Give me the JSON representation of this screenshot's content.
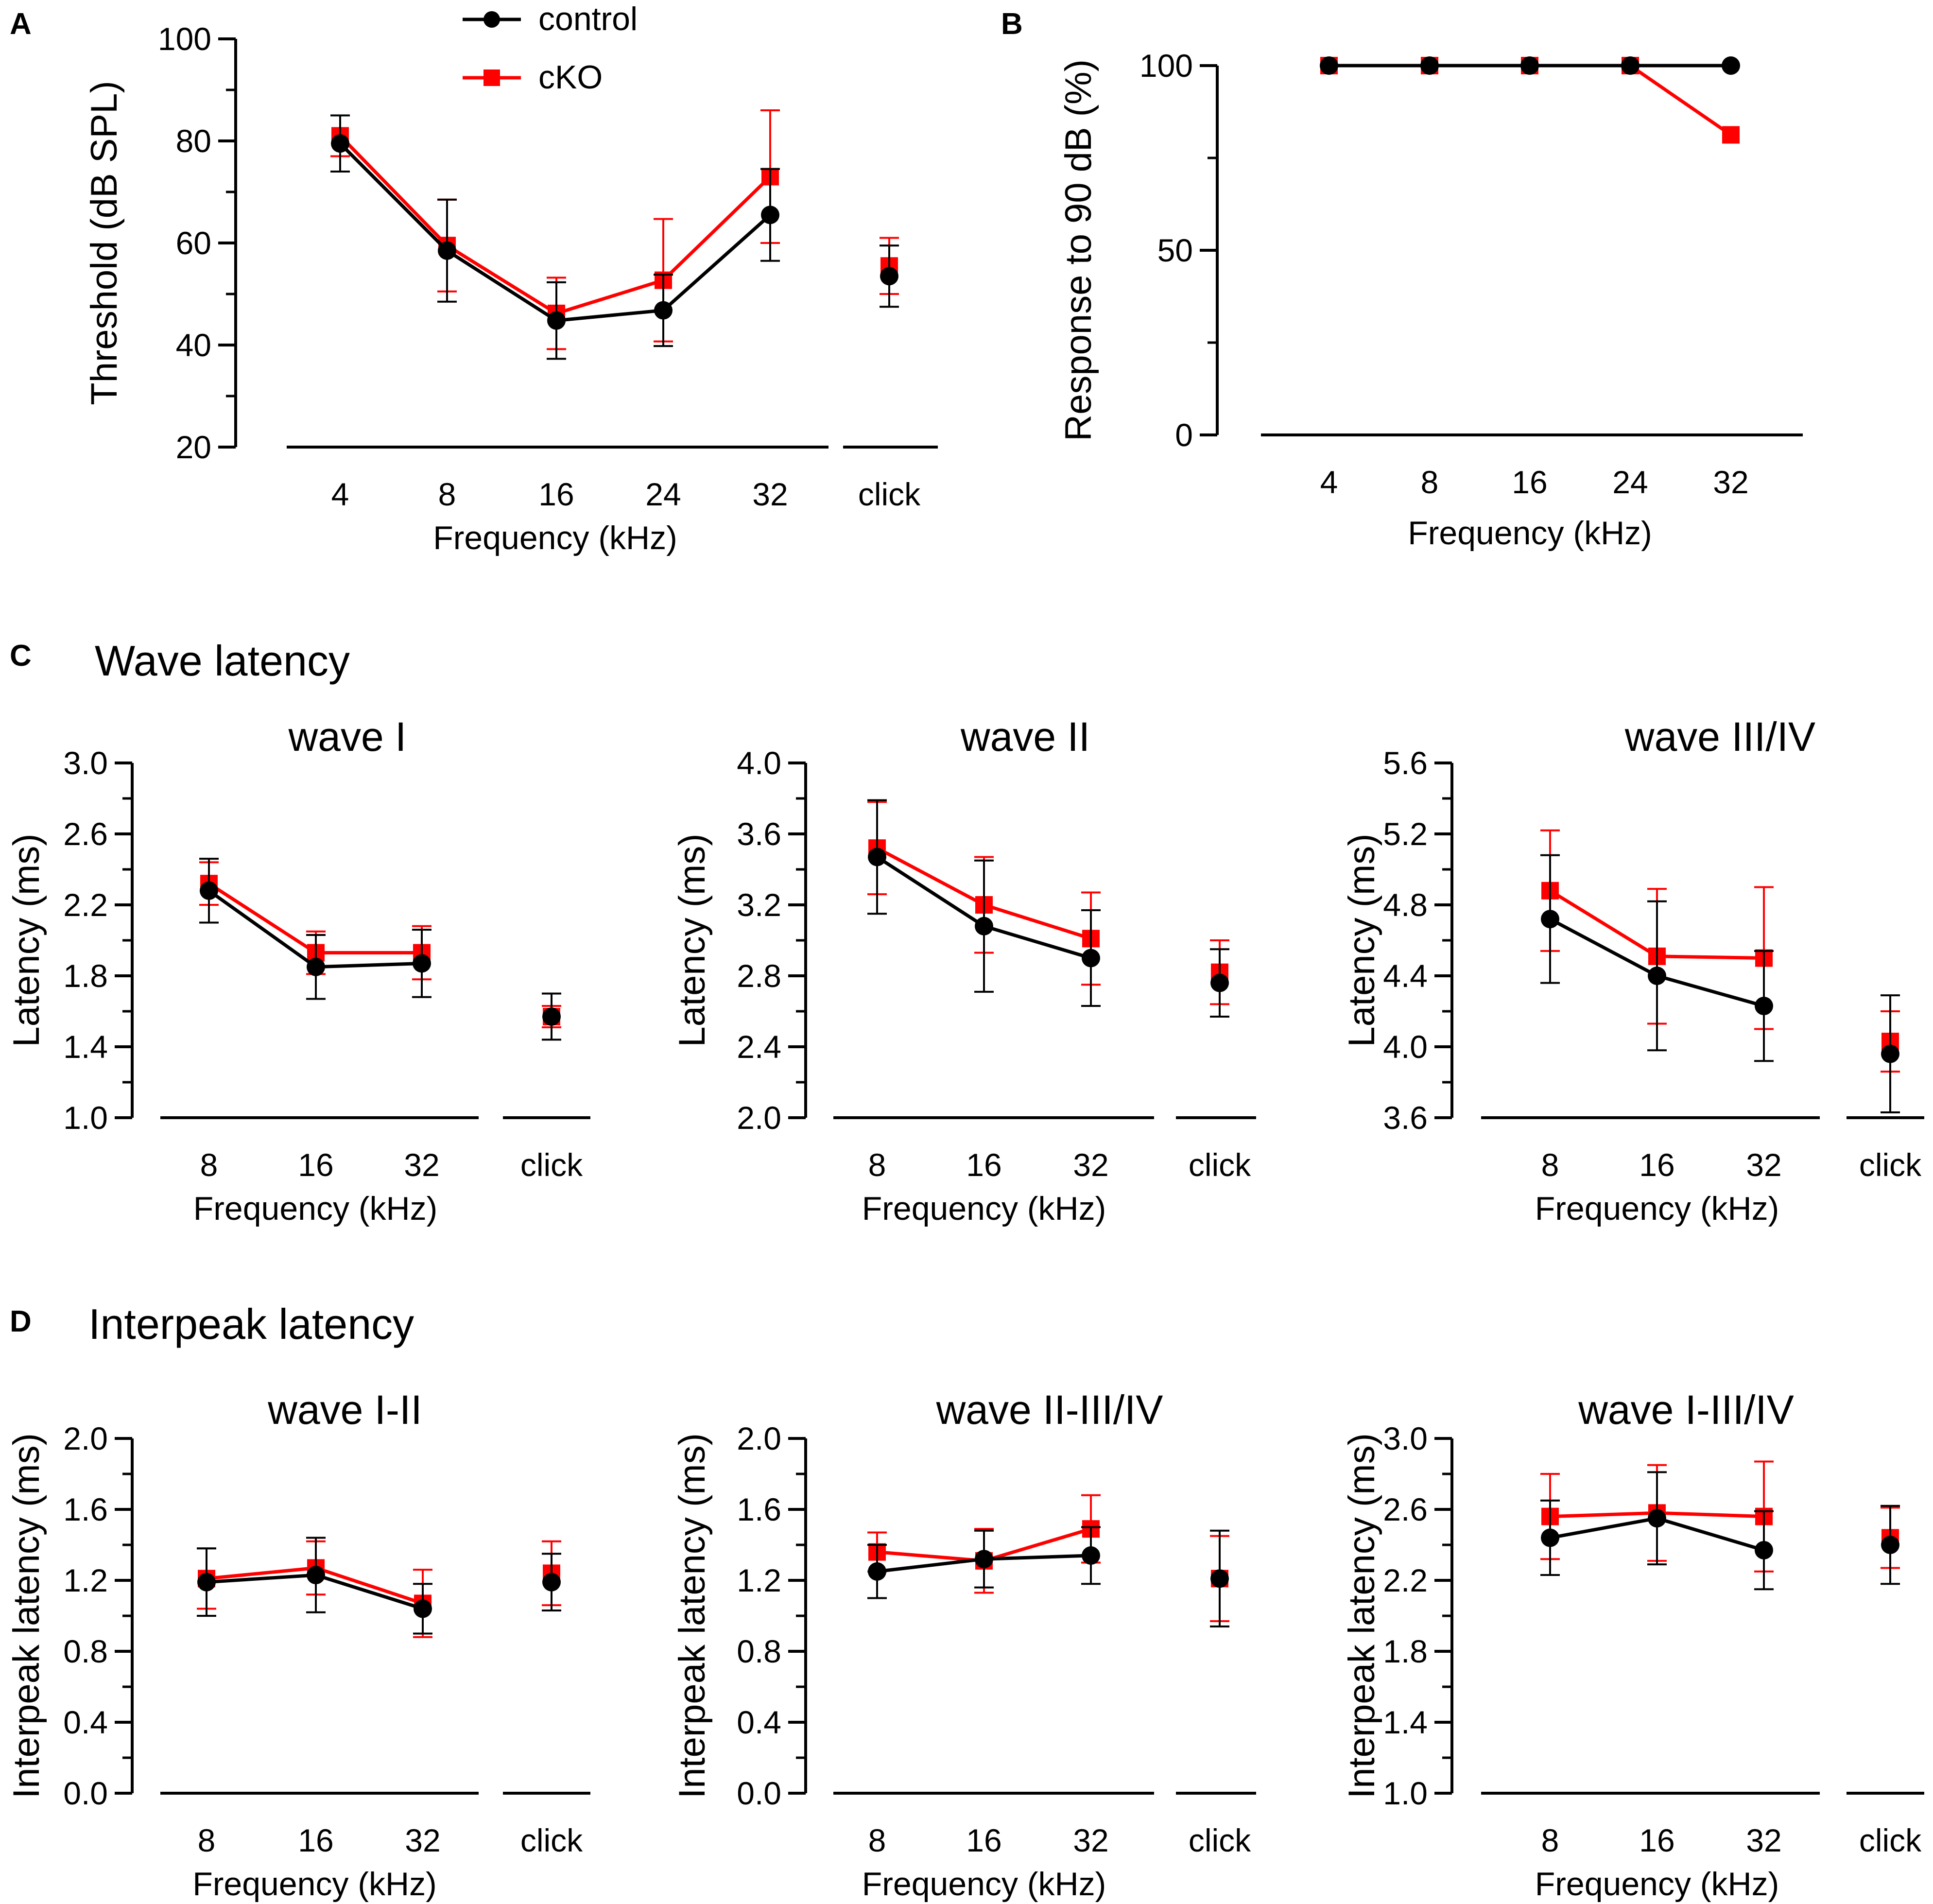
{
  "legend": {
    "entries": [
      {
        "label": "control",
        "color": "#000000",
        "marker": "circle"
      },
      {
        "label": "cKO",
        "color": "#ff0000",
        "marker": "square"
      }
    ]
  },
  "sections": {
    "C": {
      "letter": "C",
      "title": "Wave latency"
    },
    "D": {
      "letter": "D",
      "title": "Interpeak latency"
    }
  },
  "chart_data": [
    {
      "id": "A",
      "letter": "A",
      "type": "line",
      "title": "",
      "xlabel": "Frequency (kHz)",
      "ylabel": "Threshold (dB SPL)",
      "categories": [
        "4",
        "8",
        "16",
        "24",
        "32"
      ],
      "extra_category": "click",
      "ylim": [
        20,
        100
      ],
      "yticks": [
        20,
        40,
        60,
        80,
        100
      ],
      "series": [
        {
          "name": "control",
          "values": [
            79.5,
            58.5,
            44.8,
            46.8,
            65.5
          ],
          "err": [
            5.5,
            10,
            7.5,
            7,
            9
          ],
          "extra": 53.5,
          "extra_err": 6
        },
        {
          "name": "cKO",
          "values": [
            81,
            59.5,
            46.2,
            52.7,
            73
          ],
          "err": [
            4,
            9,
            7,
            12,
            13
          ],
          "extra": 55.5,
          "extra_err": 5.5
        }
      ]
    },
    {
      "id": "B",
      "letter": "B",
      "type": "line",
      "title": "",
      "xlabel": "Frequency (kHz)",
      "ylabel": "Response to 90 dB (%)",
      "categories": [
        "4",
        "8",
        "16",
        "24",
        "32"
      ],
      "ylim": [
        0,
        100
      ],
      "yticks": [
        0,
        50,
        100
      ],
      "series": [
        {
          "name": "control",
          "values": [
            100,
            100,
            100,
            100,
            100
          ]
        },
        {
          "name": "cKO",
          "values": [
            100,
            100,
            100,
            100,
            81.25
          ]
        }
      ]
    },
    {
      "id": "C1",
      "type": "line",
      "title": "wave I",
      "xlabel": "Frequency (kHz)",
      "ylabel": "Latency (ms)",
      "categories": [
        "8",
        "16",
        "32"
      ],
      "extra_category": "click",
      "ylim": [
        1.0,
        3.0
      ],
      "yticks": [
        "1.0",
        "1.4",
        "1.8",
        "2.2",
        "2.6",
        "3.0"
      ],
      "series": [
        {
          "name": "control",
          "values": [
            2.28,
            1.85,
            1.87
          ],
          "err": [
            0.18,
            0.18,
            0.19
          ],
          "extra": 1.57,
          "extra_err": 0.13
        },
        {
          "name": "cKO",
          "values": [
            2.32,
            1.93,
            1.93
          ],
          "err": [
            0.12,
            0.12,
            0.15
          ],
          "extra": 1.57,
          "extra_err": 0.06
        }
      ]
    },
    {
      "id": "C2",
      "type": "line",
      "title": "wave II",
      "xlabel": "Frequency (kHz)",
      "ylabel": "Latency (ms)",
      "categories": [
        "8",
        "16",
        "32"
      ],
      "extra_category": "click",
      "ylim": [
        2.0,
        4.0
      ],
      "yticks": [
        "2.0",
        "2.4",
        "2.8",
        "3.2",
        "3.6",
        "4.0"
      ],
      "series": [
        {
          "name": "control",
          "values": [
            3.47,
            3.08,
            2.9
          ],
          "err": [
            0.32,
            0.37,
            0.27
          ],
          "extra": 2.76,
          "extra_err": 0.19
        },
        {
          "name": "cKO",
          "values": [
            3.52,
            3.2,
            3.01
          ],
          "err": [
            0.26,
            0.27,
            0.26
          ],
          "extra": 2.82,
          "extra_err": 0.18
        }
      ]
    },
    {
      "id": "C3",
      "type": "line",
      "title": "wave III/IV",
      "xlabel": "Frequency (kHz)",
      "ylabel": "Latency (ms)",
      "categories": [
        "8",
        "16",
        "32"
      ],
      "extra_category": "click",
      "ylim": [
        3.6,
        5.6
      ],
      "yticks": [
        "3.6",
        "4.0",
        "4.4",
        "4.8",
        "5.2",
        "5.6"
      ],
      "series": [
        {
          "name": "control",
          "values": [
            4.72,
            4.4,
            4.23
          ],
          "err": [
            0.36,
            0.42,
            0.31
          ],
          "extra": 3.96,
          "extra_err": 0.33
        },
        {
          "name": "cKO",
          "values": [
            4.88,
            4.51,
            4.5
          ],
          "err": [
            0.34,
            0.38,
            0.4
          ],
          "extra": 4.03,
          "extra_err": 0.17
        }
      ]
    },
    {
      "id": "D1",
      "type": "line",
      "title": "wave I-II",
      "xlabel": "Frequency (kHz)",
      "ylabel": "Interpeak latency (ms)",
      "categories": [
        "8",
        "16",
        "32"
      ],
      "extra_category": "click",
      "ylim": [
        0.0,
        2.0
      ],
      "yticks": [
        "0.0",
        "0.4",
        "0.8",
        "1.2",
        "1.6",
        "2.0"
      ],
      "series": [
        {
          "name": "control",
          "values": [
            1.19,
            1.23,
            1.04
          ],
          "err": [
            0.19,
            0.21,
            0.14
          ],
          "extra": 1.19,
          "extra_err": 0.16
        },
        {
          "name": "cKO",
          "values": [
            1.21,
            1.27,
            1.07
          ],
          "err": [
            0.17,
            0.15,
            0.19
          ],
          "extra": 1.24,
          "extra_err": 0.18
        }
      ]
    },
    {
      "id": "D2",
      "type": "line",
      "title": "wave II-III/IV",
      "xlabel": "Frequency (kHz)",
      "ylabel": "Interpeak latency (ms)",
      "categories": [
        "8",
        "16",
        "32"
      ],
      "extra_category": "click",
      "ylim": [
        0.0,
        2.0
      ],
      "yticks": [
        "0.0",
        "0.4",
        "0.8",
        "1.2",
        "1.6",
        "2.0"
      ],
      "series": [
        {
          "name": "control",
          "values": [
            1.25,
            1.32,
            1.34
          ],
          "err": [
            0.15,
            0.16,
            0.16
          ],
          "extra": 1.21,
          "extra_err": 0.27
        },
        {
          "name": "cKO",
          "values": [
            1.36,
            1.31,
            1.49
          ],
          "err": [
            0.11,
            0.18,
            0.19
          ],
          "extra": 1.21,
          "extra_err": 0.24
        }
      ]
    },
    {
      "id": "D3",
      "type": "line",
      "title": "wave I-III/IV",
      "xlabel": "Frequency (kHz)",
      "ylabel": "Interpeak latency (ms)",
      "categories": [
        "8",
        "16",
        "32"
      ],
      "extra_category": "click",
      "ylim": [
        1.0,
        3.0
      ],
      "yticks": [
        "1.0",
        "1.4",
        "1.8",
        "2.2",
        "2.6",
        "3.0"
      ],
      "series": [
        {
          "name": "control",
          "values": [
            2.44,
            2.55,
            2.37
          ],
          "err": [
            0.21,
            0.26,
            0.22
          ],
          "extra": 2.4,
          "extra_err": 0.22
        },
        {
          "name": "cKO",
          "values": [
            2.56,
            2.58,
            2.56
          ],
          "err": [
            0.24,
            0.27,
            0.31
          ],
          "extra": 2.44,
          "extra_err": 0.17
        }
      ]
    }
  ]
}
